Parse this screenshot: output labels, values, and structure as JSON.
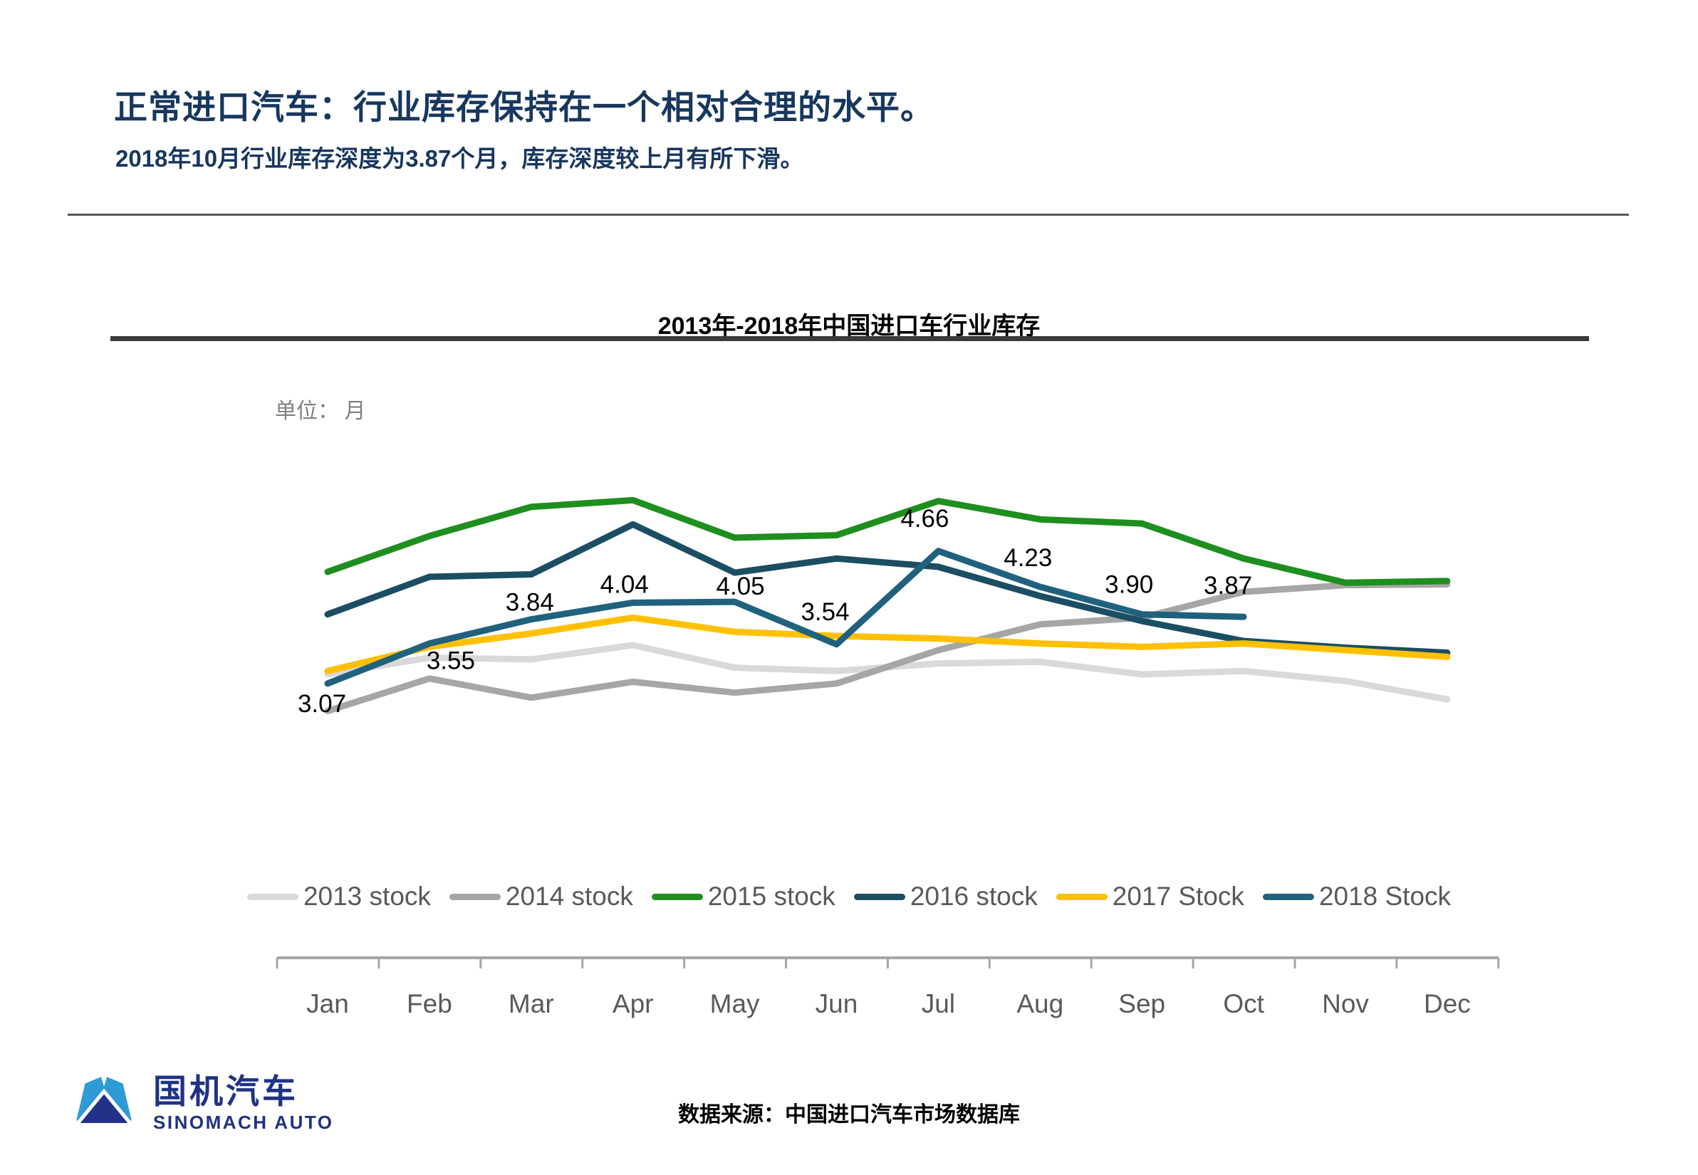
{
  "header": {
    "title": "正常进口汽车：行业库存保持在一个相对合理的水平。",
    "subtitle": "2018年10月行业库存深度为3.87个月，库存深度较上月有所下滑。"
  },
  "chart": {
    "title": "2013年-2018年中国进口车行业库存",
    "unit_label": "单位： 月"
  },
  "chart_data": {
    "type": "line",
    "title": "2013年-2018年中国进口车行业库存",
    "unit": "月",
    "categories": [
      "Jan",
      "Feb",
      "Mar",
      "Apr",
      "May",
      "Jun",
      "Jul",
      "Aug",
      "Sep",
      "Oct",
      "Nov",
      "Dec"
    ],
    "series": [
      {
        "name": "2013 stock",
        "color": "#D9D9D9",
        "values": [
          3.18,
          3.38,
          3.36,
          3.53,
          3.26,
          3.22,
          3.31,
          3.33,
          3.18,
          3.22,
          3.1,
          2.88
        ]
      },
      {
        "name": "2014 stock",
        "color": "#A6A6A6",
        "values": [
          2.74,
          3.13,
          2.9,
          3.09,
          2.96,
          3.07,
          3.47,
          3.78,
          3.86,
          4.17,
          4.25,
          4.26
        ]
      },
      {
        "name": "2015 stock",
        "color": "#1E8F1E",
        "values": [
          4.41,
          4.84,
          5.19,
          5.27,
          4.82,
          4.85,
          5.26,
          5.04,
          4.99,
          4.57,
          4.28,
          4.3
        ]
      },
      {
        "name": "2016 stock",
        "color": "#1B4E63",
        "values": [
          3.9,
          4.35,
          4.38,
          4.98,
          4.4,
          4.57,
          4.47,
          4.12,
          3.82,
          3.58,
          3.5,
          3.44
        ]
      },
      {
        "name": "2017 Stock",
        "color": "#FFC000",
        "values": [
          3.22,
          3.51,
          3.67,
          3.86,
          3.69,
          3.64,
          3.61,
          3.55,
          3.51,
          3.55,
          3.47,
          3.39
        ]
      },
      {
        "name": "2018 Stock",
        "color": "#20617E",
        "values": [
          3.07,
          3.55,
          3.84,
          4.04,
          4.05,
          3.54,
          4.66,
          4.23,
          3.9,
          3.87
        ]
      }
    ],
    "data_labels": {
      "series": "2018 Stock",
      "labels": [
        "3.07",
        "3.55",
        "3.84",
        "4.04",
        "4.05",
        "3.54",
        "4.66",
        "4.23",
        "3.90",
        "3.87"
      ]
    },
    "legend_position": "bottom",
    "grid": false,
    "y_axis_visible": false,
    "x_axis_visible": true
  },
  "footer": {
    "source": "数据来源：中国进口汽车市场数据库",
    "logo_cn": "国机汽车",
    "logo_en": "SINOMACH AUTO"
  },
  "colors": {
    "header_text": "#17375E",
    "axis": "#A6A6A6",
    "tick_label": "#595959",
    "legend_text": "#595959",
    "logo_navy": "#1F3285",
    "logo_blue": "#2E9BD6"
  }
}
